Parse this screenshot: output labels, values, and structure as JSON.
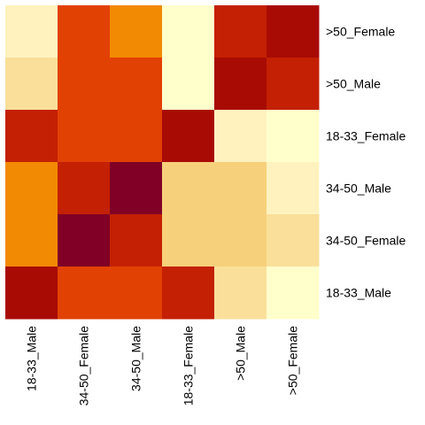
{
  "chart_data": {
    "type": "heatmap",
    "title": "",
    "xlabel": "",
    "ylabel": "",
    "x_categories": [
      "18-33_Male",
      "34-50_Female",
      "34-50_Male",
      "18-33_Female",
      ">50_Male",
      ">50_Female"
    ],
    "y_categories": [
      ">50_Female",
      ">50_Male",
      "18-33_Female",
      "34-50_Male",
      "34-50_Female",
      "18-33_Male"
    ],
    "colormap": "YlOrRd (light = low, dark red = high)",
    "color_scale": [
      "#ffffcc",
      "#fff2bf",
      "#fadf9a",
      "#f7d07b",
      "#f28a04",
      "#ee6a04",
      "#e24104",
      "#c42003",
      "#a80b04",
      "#800026"
    ],
    "value_range": [
      0,
      9
    ],
    "values": [
      [
        1,
        6,
        4,
        0,
        7,
        8
      ],
      [
        2,
        6,
        6,
        0,
        8,
        7
      ],
      [
        7,
        6,
        6,
        8,
        1,
        0
      ],
      [
        4,
        7,
        9,
        3,
        3,
        1
      ],
      [
        4,
        9,
        7,
        3,
        3,
        2
      ],
      [
        8,
        6,
        6,
        7,
        2,
        0
      ]
    ]
  }
}
